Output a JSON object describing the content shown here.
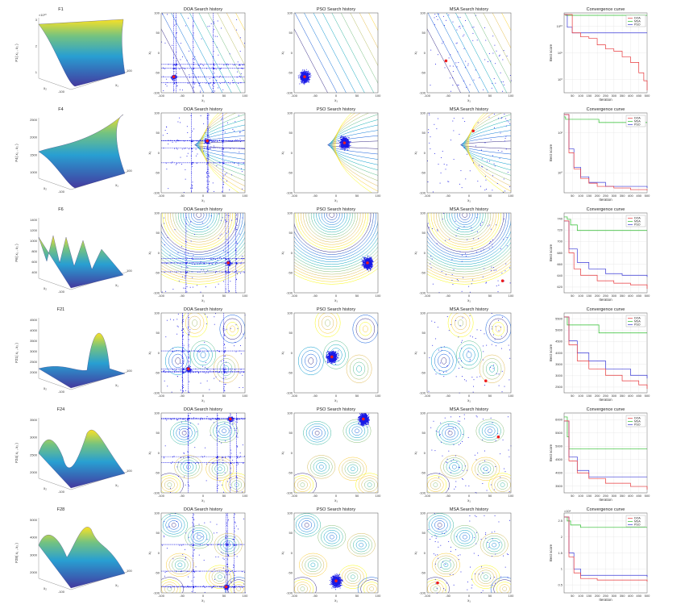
{
  "chart_data": {
    "type": "figure-grid",
    "headers": {
      "doa": "DOA Search history",
      "pso": "PSO Search history",
      "msa": "MSA Search history",
      "conv": "Convergence curve"
    },
    "axis_labels": {
      "x1": "x₁",
      "x2": "x₂",
      "iteration": "Iteration",
      "best_score": "Best score"
    },
    "legend": [
      "DOA",
      "MSA",
      "PSO"
    ],
    "series_colors": {
      "DOA": "#e8393c",
      "MSA": "#2bbd2b",
      "PSO": "#3a3ad8"
    },
    "search_ticks": [
      "-100",
      "-50",
      "0",
      "50",
      "100"
    ],
    "conv_x_ticks": [
      "50",
      "100",
      "150",
      "200",
      "250",
      "300",
      "350",
      "400",
      "450",
      "500"
    ],
    "rows": [
      {
        "fn": "F1",
        "zlabel": "F1( x₁ , x₂ )",
        "zticks": [
          "1",
          "2",
          "3"
        ],
        "zexp": "×10¹⁰",
        "contour": "diag",
        "ylog": true,
        "conv_yticks": [
          "10⁰",
          "10⁵",
          "10¹⁰"
        ],
        "best": {
          "doa": [
            -70,
            -60
          ],
          "pso": [
            -75,
            -60
          ],
          "msa": [
            -55,
            -20
          ]
        },
        "curves": {
          "DOA": [
            [
              1,
              0.02
            ],
            [
              50,
              0.25
            ],
            [
              100,
              0.3
            ],
            [
              150,
              0.32
            ],
            [
              200,
              0.4
            ],
            [
              250,
              0.45
            ],
            [
              300,
              0.48
            ],
            [
              350,
              0.55
            ],
            [
              400,
              0.62
            ],
            [
              450,
              0.75
            ],
            [
              480,
              0.85
            ],
            [
              500,
              0.97
            ]
          ],
          "MSA": [
            [
              1,
              0.02
            ],
            [
              10,
              0.03
            ],
            [
              500,
              0.03
            ]
          ],
          "PSO": [
            [
              1,
              0.02
            ],
            [
              20,
              0.18
            ],
            [
              50,
              0.25
            ],
            [
              100,
              0.25
            ],
            [
              500,
              0.25
            ]
          ]
        }
      },
      {
        "fn": "F4",
        "zlabel": "F4( x₁ , x₂ )",
        "zticks": [
          "1000",
          "1500",
          "2000",
          "2500"
        ],
        "zexp": "",
        "contour": "parab",
        "ylog": true,
        "conv_yticks": [
          "10⁰",
          "10²"
        ],
        "best": {
          "doa": [
            10,
            30
          ],
          "pso": [
            20,
            25
          ],
          "msa": [
            10,
            55
          ]
        },
        "curves": {
          "DOA": [
            [
              1,
              0.02
            ],
            [
              30,
              0.5
            ],
            [
              60,
              0.7
            ],
            [
              100,
              0.82
            ],
            [
              150,
              0.88
            ],
            [
              200,
              0.92
            ],
            [
              300,
              0.94
            ],
            [
              400,
              0.96
            ],
            [
              500,
              0.97
            ]
          ],
          "MSA": [
            [
              1,
              0.05
            ],
            [
              10,
              0.08
            ],
            [
              200,
              0.08
            ],
            [
              210,
              0.12
            ],
            [
              500,
              0.12
            ]
          ],
          "PSO": [
            [
              1,
              0.02
            ],
            [
              30,
              0.45
            ],
            [
              60,
              0.68
            ],
            [
              100,
              0.8
            ],
            [
              150,
              0.87
            ],
            [
              250,
              0.92
            ],
            [
              500,
              0.94
            ]
          ]
        }
      },
      {
        "fn": "F6",
        "zlabel": "F6( x₁ , x₂ )",
        "zticks": [
          "400",
          "600",
          "800",
          "1000",
          "1200",
          "1400"
        ],
        "zexp": "",
        "contour": "circ",
        "ylog": false,
        "conv_yticks": [
          "620",
          "640",
          "660",
          "680",
          "700",
          "720",
          "740"
        ],
        "best": {
          "doa": [
            60,
            -25
          ],
          "pso": [
            75,
            -25
          ],
          "msa": [
            80,
            -70
          ]
        },
        "curves": {
          "DOA": [
            [
              1,
              0.1
            ],
            [
              30,
              0.5
            ],
            [
              60,
              0.7
            ],
            [
              100,
              0.78
            ],
            [
              200,
              0.85
            ],
            [
              300,
              0.88
            ],
            [
              400,
              0.9
            ],
            [
              500,
              0.95
            ]
          ],
          "MSA": [
            [
              1,
              0.05
            ],
            [
              20,
              0.08
            ],
            [
              40,
              0.15
            ],
            [
              80,
              0.22
            ],
            [
              500,
              0.22
            ]
          ],
          "PSO": [
            [
              1,
              0.1
            ],
            [
              30,
              0.45
            ],
            [
              80,
              0.62
            ],
            [
              150,
              0.7
            ],
            [
              250,
              0.76
            ],
            [
              350,
              0.78
            ],
            [
              500,
              0.8
            ]
          ]
        }
      },
      {
        "fn": "F21",
        "zlabel": "F21( x₁ , x₂ )",
        "zticks": [
          "2000",
          "2500",
          "3000",
          "3500",
          "4000",
          "4500"
        ],
        "zexp": "",
        "contour": "peaks",
        "ylog": false,
        "conv_yticks": [
          "2500",
          "3000",
          "3500",
          "4000",
          "4500",
          "5000",
          "5500"
        ],
        "best": {
          "doa": [
            -35,
            -40
          ],
          "pso": [
            -10,
            -10
          ],
          "msa": [
            40,
            -70
          ]
        },
        "curves": {
          "DOA": [
            [
              1,
              0.05
            ],
            [
              30,
              0.4
            ],
            [
              80,
              0.6
            ],
            [
              150,
              0.7
            ],
            [
              250,
              0.78
            ],
            [
              350,
              0.85
            ],
            [
              450,
              0.9
            ],
            [
              500,
              0.95
            ]
          ],
          "MSA": [
            [
              1,
              0.05
            ],
            [
              20,
              0.15
            ],
            [
              200,
              0.15
            ],
            [
              210,
              0.25
            ],
            [
              500,
              0.25
            ]
          ],
          "PSO": [
            [
              1,
              0.05
            ],
            [
              30,
              0.35
            ],
            [
              80,
              0.5
            ],
            [
              150,
              0.6
            ],
            [
              250,
              0.7
            ],
            [
              400,
              0.78
            ],
            [
              500,
              0.82
            ]
          ]
        }
      },
      {
        "fn": "F24",
        "zlabel": "F24( x₁ , x₂ )",
        "zticks": [
          "2000",
          "2500",
          "3000",
          "3500"
        ],
        "zexp": "",
        "contour": "blobs",
        "ylog": false,
        "conv_yticks": [
          "3500",
          "4000",
          "4500",
          "5000",
          "5500",
          "6000"
        ],
        "best": {
          "doa": [
            65,
            85
          ],
          "pso": [
            65,
            85
          ],
          "msa": [
            70,
            40
          ]
        },
        "curves": {
          "DOA": [
            [
              1,
              0.1
            ],
            [
              30,
              0.6
            ],
            [
              80,
              0.75
            ],
            [
              150,
              0.82
            ],
            [
              250,
              0.88
            ],
            [
              400,
              0.92
            ],
            [
              500,
              0.96
            ]
          ],
          "MSA": [
            [
              1,
              0.05
            ],
            [
              20,
              0.3
            ],
            [
              30,
              0.45
            ],
            [
              500,
              0.45
            ]
          ],
          "PSO": [
            [
              1,
              0.1
            ],
            [
              30,
              0.55
            ],
            [
              80,
              0.72
            ],
            [
              150,
              0.8
            ],
            [
              500,
              0.8
            ]
          ]
        }
      },
      {
        "fn": "F28",
        "zlabel": "F28( x₁ , x₂ )",
        "zticks": [
          "2000",
          "3000",
          "4000",
          "5000"
        ],
        "zexp": "",
        "contour": "blobs2",
        "ylog": false,
        "conv_yticks": [
          "0.5",
          "1",
          "1.5",
          "2",
          "2.5"
        ],
        "conv_yexp": "×10⁴",
        "best": {
          "doa": [
            55,
            -85
          ],
          "pso": [
            0,
            -70
          ],
          "msa": [
            -75,
            -75
          ]
        },
        "curves": {
          "DOA": [
            [
              1,
              0.05
            ],
            [
              30,
              0.55
            ],
            [
              60,
              0.75
            ],
            [
              100,
              0.82
            ],
            [
              200,
              0.84
            ],
            [
              500,
              0.86
            ]
          ],
          "MSA": [
            [
              1,
              0.05
            ],
            [
              20,
              0.1
            ],
            [
              40,
              0.15
            ],
            [
              100,
              0.18
            ],
            [
              500,
              0.18
            ]
          ],
          "PSO": [
            [
              1,
              0.05
            ],
            [
              30,
              0.5
            ],
            [
              60,
              0.7
            ],
            [
              100,
              0.78
            ],
            [
              500,
              0.8
            ]
          ]
        }
      }
    ]
  }
}
